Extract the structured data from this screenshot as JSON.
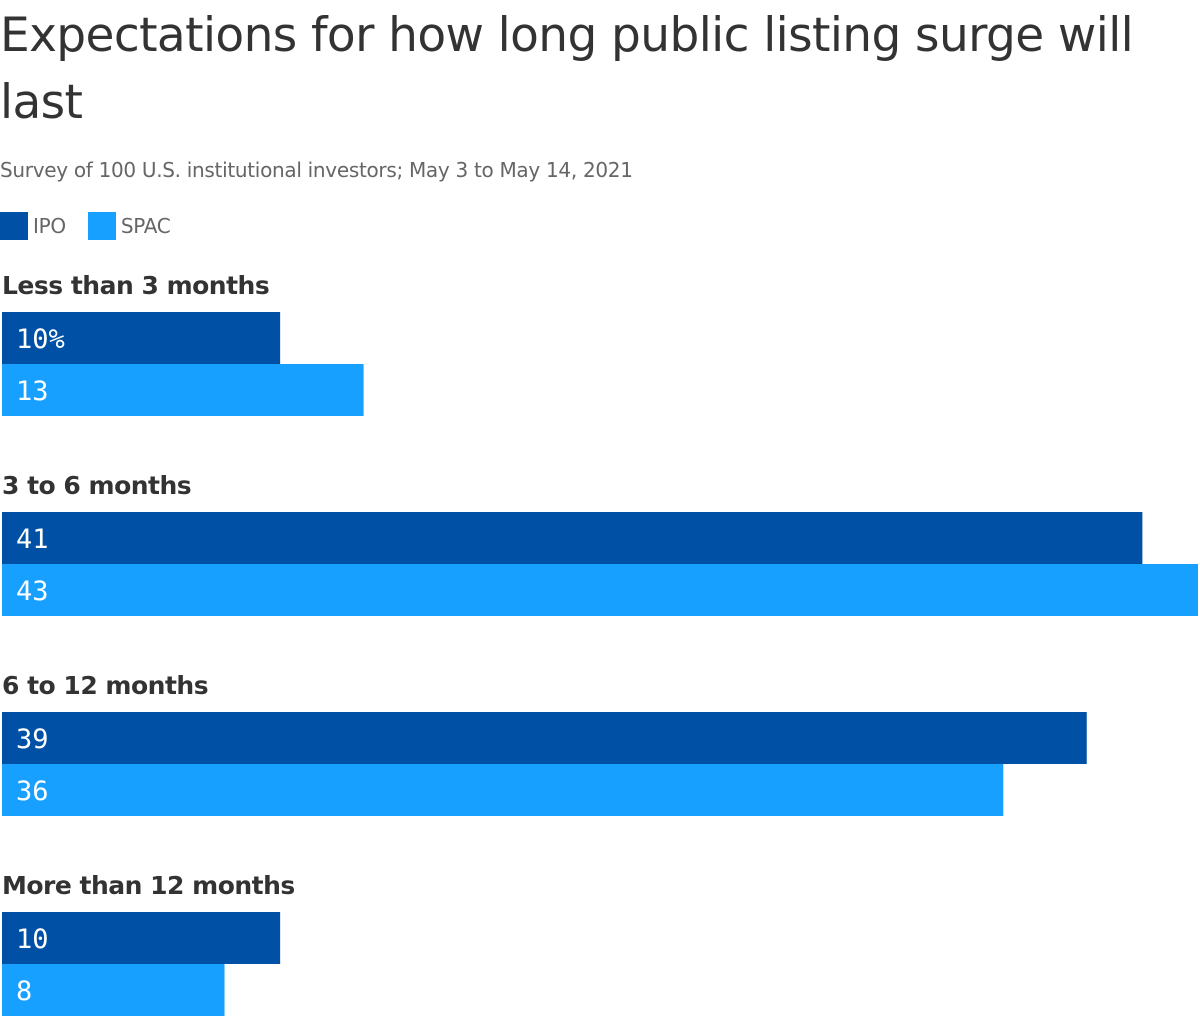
{
  "colors": {
    "ipo": "#0050a5",
    "spac": "#17a0ff",
    "text": "#333333",
    "muted": "#666666"
  },
  "chart_data": {
    "type": "bar",
    "orientation": "horizontal",
    "title": "Expectations for how long public listing surge will last",
    "subtitle": "Survey of 100 U.S. institutional investors; May 3 to May 14, 2021",
    "categories": [
      "Less than 3 months",
      "3 to 6 months",
      "6 to 12 months",
      "More than 12 months"
    ],
    "series": [
      {
        "name": "IPO",
        "color": "#0050a5",
        "values": [
          10,
          41,
          39,
          10
        ],
        "labels": [
          "10%",
          "41",
          "39",
          "10"
        ]
      },
      {
        "name": "SPAC",
        "color": "#17a0ff",
        "values": [
          13,
          43,
          36,
          8
        ],
        "labels": [
          "13",
          "43",
          "36",
          "8"
        ]
      }
    ],
    "xlim": [
      0,
      43
    ],
    "value_unit": "%",
    "grid": false,
    "legend": "top-left"
  }
}
